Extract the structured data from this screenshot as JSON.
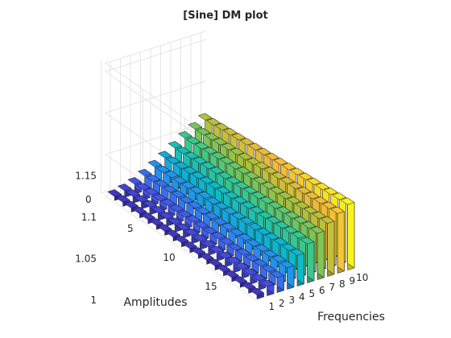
{
  "chart_data": {
    "type": "bar3",
    "title": "[Sine] DM plot",
    "xlabel": "Frequencies",
    "ylabel": "Amplitudes",
    "zlabel": "",
    "frequencies": [
      1,
      2,
      3,
      4,
      5,
      6,
      7,
      8,
      9,
      10
    ],
    "amplitudes": [
      1,
      2,
      3,
      4,
      5,
      6,
      7,
      8,
      9,
      10,
      11,
      12,
      13,
      14,
      15,
      16,
      17,
      18
    ],
    "xticks": [
      1,
      2,
      3,
      4,
      5,
      6,
      7,
      8,
      9,
      10
    ],
    "yticks": [
      0,
      5,
      10,
      15
    ],
    "zticks": [
      1,
      1.05,
      1.1,
      1.15
    ],
    "zlim": [
      1,
      1.16
    ],
    "colormap": "parula",
    "grid": true,
    "values_note_sheet": null,
    "values": [
      [
        1.005,
        1.008,
        1.012,
        1.018,
        1.025,
        1.032,
        1.04,
        1.048,
        1.055,
        1.062
      ],
      [
        1.005,
        1.008,
        1.012,
        1.018,
        1.025,
        1.032,
        1.04,
        1.048,
        1.055,
        1.063
      ],
      [
        1.005,
        1.008,
        1.013,
        1.019,
        1.026,
        1.033,
        1.041,
        1.049,
        1.056,
        1.064
      ],
      [
        1.005,
        1.009,
        1.013,
        1.019,
        1.026,
        1.034,
        1.042,
        1.05,
        1.057,
        1.065
      ],
      [
        1.005,
        1.009,
        1.014,
        1.02,
        1.027,
        1.035,
        1.043,
        1.051,
        1.058,
        1.066
      ],
      [
        1.005,
        1.009,
        1.014,
        1.02,
        1.028,
        1.036,
        1.044,
        1.052,
        1.059,
        1.067
      ],
      [
        1.005,
        1.009,
        1.014,
        1.021,
        1.029,
        1.037,
        1.045,
        1.053,
        1.06,
        1.068
      ],
      [
        1.005,
        1.009,
        1.015,
        1.021,
        1.029,
        1.038,
        1.046,
        1.054,
        1.061,
        1.069
      ],
      [
        1.005,
        1.01,
        1.015,
        1.022,
        1.03,
        1.039,
        1.047,
        1.055,
        1.063,
        1.07
      ],
      [
        1.005,
        1.01,
        1.015,
        1.022,
        1.031,
        1.04,
        1.048,
        1.056,
        1.064,
        1.071
      ],
      [
        1.005,
        1.01,
        1.016,
        1.023,
        1.032,
        1.041,
        1.049,
        1.057,
        1.065,
        1.072
      ],
      [
        1.005,
        1.01,
        1.016,
        1.023,
        1.033,
        1.042,
        1.05,
        1.058,
        1.066,
        1.073
      ],
      [
        1.005,
        1.01,
        1.016,
        1.024,
        1.033,
        1.043,
        1.051,
        1.059,
        1.067,
        1.074
      ],
      [
        1.005,
        1.011,
        1.017,
        1.024,
        1.034,
        1.044,
        1.052,
        1.06,
        1.068,
        1.075
      ],
      [
        1.005,
        1.011,
        1.017,
        1.025,
        1.035,
        1.045,
        1.053,
        1.061,
        1.069,
        1.076
      ],
      [
        1.005,
        1.011,
        1.018,
        1.025,
        1.036,
        1.046,
        1.054,
        1.062,
        1.07,
        1.077
      ],
      [
        1.005,
        1.011,
        1.018,
        1.026,
        1.036,
        1.047,
        1.055,
        1.063,
        1.071,
        1.078
      ],
      [
        1.005,
        1.011,
        1.018,
        1.026,
        1.037,
        1.047,
        1.056,
        1.064,
        1.072,
        1.079
      ]
    ]
  }
}
